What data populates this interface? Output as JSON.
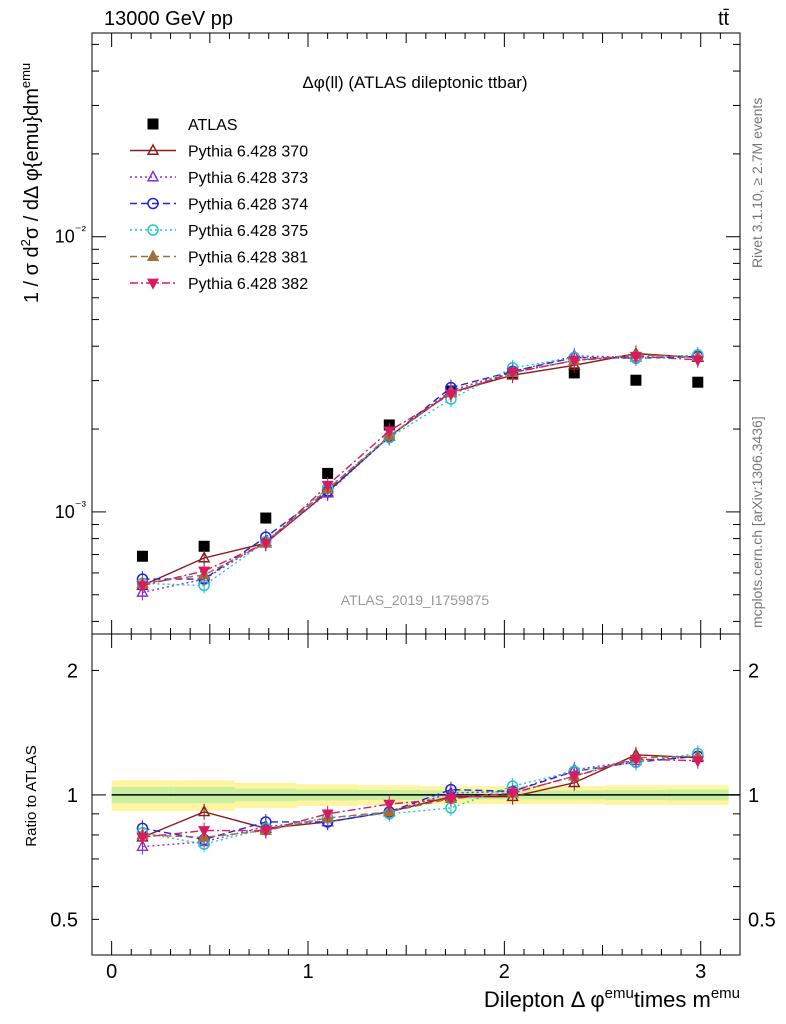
{
  "header": {
    "energy": "13000 GeV pp",
    "process": "tt̄"
  },
  "side_text": {
    "rivet": "Rivet 3.1.10, ≥ 2.7M events",
    "mcplots": "mcplots.cern.ch [arXiv:1306.3436]"
  },
  "chart_data": [
    {
      "type": "scatter",
      "panel": "main",
      "title": "Δφ(ll) (ATLAS dileptonic ttbar)",
      "watermark": "ATLAS_2019_I1759875",
      "ylabel": "1 / σ  d²σ / dΔ φ{emu}dm^emu",
      "yscale": "log",
      "ylim": [
        0.00036,
        0.055
      ],
      "xlim": [
        -0.1,
        3.2
      ],
      "ytick_labels": [
        "10⁻³",
        "10⁻²"
      ],
      "legend_position": "top-left",
      "x": [
        0.157,
        0.471,
        0.785,
        1.1,
        1.414,
        1.728,
        2.042,
        2.356,
        2.67,
        2.985
      ],
      "series": [
        {
          "name": "ATLAS",
          "color": "#000000",
          "marker": "square",
          "line": "none",
          "values": [
            0.00069,
            0.00075,
            0.00095,
            0.00138,
            0.00207,
            0.00275,
            0.00318,
            0.0032,
            0.00301,
            0.00296
          ]
        },
        {
          "name": "Pythia 6.428 370",
          "color": "#8b1a1a",
          "marker": "triangle-open",
          "line": "solid",
          "values": [
            0.00054,
            0.00068,
            0.00077,
            0.00118,
            0.00188,
            0.00272,
            0.00314,
            0.00341,
            0.00376,
            0.00364
          ]
        },
        {
          "name": "Pythia 6.428 373",
          "color": "#8b2be2",
          "marker": "triangle-open",
          "line": "dotted",
          "values": [
            0.00051,
            0.00057,
            0.00078,
            0.00117,
            0.00188,
            0.00276,
            0.00323,
            0.00369,
            0.00365,
            0.00366
          ]
        },
        {
          "name": "Pythia 6.428 374",
          "color": "#2323d8",
          "marker": "circle-open",
          "line": "dashed",
          "values": [
            0.00057,
            0.00057,
            0.00081,
            0.00119,
            0.00187,
            0.00283,
            0.00324,
            0.00364,
            0.00362,
            0.00367
          ]
        },
        {
          "name": "Pythia 6.428 375",
          "color": "#20c8c8",
          "marker": "circle-open",
          "line": "dotted",
          "values": [
            0.00055,
            0.00054,
            0.00078,
            0.00122,
            0.00186,
            0.00257,
            0.00334,
            0.00364,
            0.00362,
            0.00372
          ]
        },
        {
          "name": "Pythia 6.428 381",
          "color": "#a0703a",
          "marker": "triangle-filled",
          "line": "dashed",
          "values": [
            0.00055,
            0.00059,
            0.00077,
            0.00121,
            0.00189,
            0.00271,
            0.00321,
            0.00355,
            0.00372,
            0.00366
          ]
        },
        {
          "name": "Pythia 6.428 382",
          "color": "#d81b60",
          "marker": "triangle-down-filled",
          "line": "dashdot",
          "values": [
            0.00054,
            0.00061,
            0.00077,
            0.00125,
            0.00197,
            0.00268,
            0.00321,
            0.00355,
            0.00368,
            0.00357
          ]
        }
      ]
    },
    {
      "type": "scatter",
      "panel": "ratio",
      "ylabel": "Ratio to ATLAS",
      "xlabel": "Dilepton Δ φ^emu times m^emu",
      "yscale": "log",
      "ylim": [
        0.41,
        2.45
      ],
      "xlim": [
        -0.1,
        3.2
      ],
      "xticks": [
        0,
        1,
        2,
        3
      ],
      "yticks": [
        0.5,
        1,
        2
      ],
      "ytick_labels": [
        "0.5",
        "1",
        "2"
      ],
      "xtick_labels": [
        "0",
        "1",
        "2",
        "3"
      ],
      "band_colors": [
        "#fff5a0",
        "#c8f0a0"
      ],
      "x": [
        0.157,
        0.471,
        0.785,
        1.1,
        1.414,
        1.728,
        2.042,
        2.356,
        2.67,
        2.985
      ],
      "series": [
        {
          "name": "Pythia 6.428 370",
          "values": [
            0.79,
            0.91,
            0.83,
            0.86,
            0.91,
            0.99,
            0.99,
            1.07,
            1.25,
            1.23
          ]
        },
        {
          "name": "Pythia 6.428 373",
          "values": [
            0.75,
            0.77,
            0.84,
            0.86,
            0.91,
            1.01,
            1.02,
            1.15,
            1.21,
            1.24
          ]
        },
        {
          "name": "Pythia 6.428 374",
          "values": [
            0.83,
            0.78,
            0.86,
            0.86,
            0.91,
            1.03,
            1.02,
            1.14,
            1.2,
            1.24
          ]
        },
        {
          "name": "Pythia 6.428 375",
          "values": [
            0.81,
            0.76,
            0.83,
            0.88,
            0.9,
            0.93,
            1.05,
            1.14,
            1.2,
            1.26
          ]
        },
        {
          "name": "Pythia 6.428 381",
          "values": [
            0.8,
            0.79,
            0.82,
            0.88,
            0.91,
            0.98,
            1.01,
            1.11,
            1.23,
            1.24
          ]
        },
        {
          "name": "Pythia 6.428 382",
          "values": [
            0.79,
            0.82,
            0.82,
            0.9,
            0.95,
            0.98,
            1.01,
            1.11,
            1.22,
            1.21
          ]
        }
      ]
    }
  ]
}
